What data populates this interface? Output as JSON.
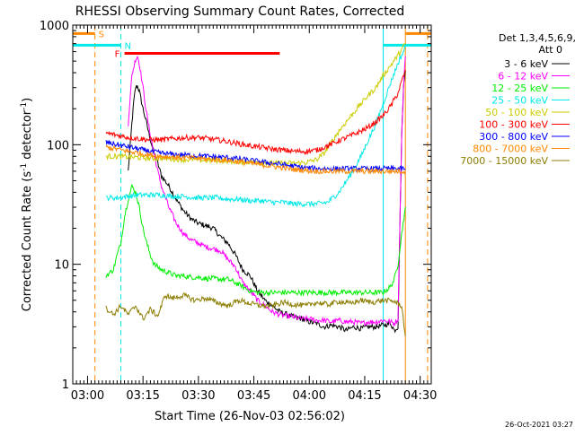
{
  "chart_data": {
    "type": "line",
    "title": "RHESSI Observing Summary Count Rates, Corrected",
    "xlabel": "Start Time (26-Nov-03 02:56:02)",
    "ylabel_main": "Corrected Count Rate (s",
    "ylabel_sup1": "-1",
    "ylabel_mid": " detector",
    "ylabel_sup2": "-1",
    "ylabel_end": ")",
    "footer": "26-Oct-2021 03:27",
    "x_unit": "minutes after 02:56:02",
    "xlim": [
      0,
      97
    ],
    "ylim": [
      1,
      1000
    ],
    "yscale": "log",
    "x_ticks": [
      {
        "value": 4,
        "label": "03:00"
      },
      {
        "value": 19,
        "label": "03:15"
      },
      {
        "value": 34,
        "label": "03:30"
      },
      {
        "value": 49,
        "label": "03:45"
      },
      {
        "value": 64,
        "label": "04:00"
      },
      {
        "value": 79,
        "label": "04:15"
      },
      {
        "value": 94,
        "label": "04:30"
      }
    ],
    "y_ticks": [
      {
        "value": 1,
        "label": "1"
      },
      {
        "value": 10,
        "label": "10"
      },
      {
        "value": 100,
        "label": "100"
      },
      {
        "value": 1000,
        "label": "1000"
      }
    ],
    "legend": {
      "header1": "Det 1,3,4,5,6,9,",
      "header2": "Att 0",
      "entries": [
        {
          "label": "3 - 6 keV",
          "color": "#000000"
        },
        {
          "label": "6 - 12 keV",
          "color": "#ff00ff"
        },
        {
          "label": "12 - 25 keV",
          "color": "#00ee00"
        },
        {
          "label": "25 - 50 keV",
          "color": "#00e8e8"
        },
        {
          "label": "50 - 100 keV",
          "color": "#cccc00"
        },
        {
          "label": "100 - 300 keV",
          "color": "#ff0000"
        },
        {
          "label": "300 - 800 keV",
          "color": "#0000ff"
        },
        {
          "label": "800 - 7000 keV",
          "color": "#ff8800"
        },
        {
          "label": "7000 - 15000 keV",
          "color": "#8b7d00"
        }
      ]
    },
    "flags": [
      {
        "label": "S",
        "color": "#ff8800",
        "x_start": 0,
        "x_end": 6,
        "x_start2": 90,
        "x_end2": 97,
        "value": 850
      },
      {
        "label": "N",
        "color": "#00e8e8",
        "x_start": 0,
        "x_end": 13,
        "x_start2": 84,
        "x_end2": 97,
        "value": 680
      },
      {
        "label": "F",
        "color": "#ff0000",
        "x_start": 14,
        "x_end": 56,
        "value": 580
      }
    ],
    "vlines": [
      {
        "x": 6,
        "color": "#ff8800",
        "style": "dashed"
      },
      {
        "x": 13,
        "color": "#00e8e8",
        "style": "dashed"
      },
      {
        "x": 84,
        "color": "#00e8e8",
        "style": "solid"
      },
      {
        "x": 90,
        "color": "#ff8800",
        "style": "solid"
      },
      {
        "x": 96,
        "color": "#ff8800",
        "style": "dashed"
      }
    ],
    "series": [
      {
        "name": "3 - 6 keV",
        "color": "#000000",
        "x": [
          9,
          12,
          14,
          15,
          16,
          16.5,
          17,
          17.5,
          18,
          19,
          20,
          21,
          22,
          23,
          24,
          26,
          28,
          30,
          32,
          34,
          36,
          38,
          40,
          42,
          44,
          46,
          48,
          50,
          52,
          54,
          56,
          58,
          60,
          62,
          64,
          66,
          68,
          70,
          72,
          74,
          76,
          78,
          80,
          82,
          84,
          86,
          87,
          88,
          89,
          89.5,
          90
        ],
        "y": [
          null,
          null,
          null,
          60,
          150,
          230,
          300,
          310,
          280,
          200,
          150,
          110,
          85,
          70,
          55,
          45,
          35,
          28,
          24,
          22,
          21,
          20,
          17,
          15,
          12,
          9,
          8,
          6,
          5,
          4.5,
          4,
          3.8,
          3.6,
          3.5,
          3.3,
          3.2,
          3.0,
          3.1,
          3.0,
          2.8,
          3.0,
          2.9,
          3.0,
          3.0,
          3.1,
          3.2,
          2.8,
          3.0,
          120,
          300,
          420
        ]
      },
      {
        "name": "6 - 12 keV",
        "color": "#ff00ff",
        "x": [
          9,
          12,
          14,
          15,
          16,
          17,
          17.5,
          18,
          19,
          20,
          21,
          22,
          23,
          24,
          26,
          28,
          30,
          32,
          34,
          36,
          38,
          40,
          42,
          44,
          46,
          48,
          50,
          52,
          54,
          56,
          58,
          60,
          62,
          64,
          66,
          68,
          70,
          72,
          74,
          76,
          78,
          80,
          82,
          84,
          86,
          87,
          88,
          89,
          89.5,
          90
        ],
        "y": [
          null,
          null,
          null,
          150,
          380,
          520,
          550,
          480,
          300,
          180,
          120,
          85,
          60,
          45,
          30,
          22,
          18,
          16,
          15,
          14,
          13.5,
          13,
          11,
          9.5,
          7,
          6,
          5,
          4.5,
          4.0,
          3.8,
          3.7,
          3.6,
          3.5,
          3.5,
          3.4,
          3.4,
          3.3,
          3.4,
          3.3,
          3.3,
          3.2,
          3.3,
          3.3,
          3.4,
          3.3,
          3.2,
          3.5,
          120,
          300,
          550
        ]
      },
      {
        "name": "12 - 25 keV",
        "color": "#00ee00",
        "x": [
          9,
          10,
          11,
          12,
          13,
          14,
          15,
          16,
          17,
          18,
          19,
          20,
          21,
          22,
          24,
          26,
          28,
          30,
          32,
          34,
          36,
          38,
          40,
          42,
          44,
          46,
          48,
          50,
          52,
          54,
          56,
          58,
          60,
          62,
          64,
          66,
          68,
          70,
          72,
          74,
          76,
          78,
          80,
          82,
          84,
          86,
          87,
          88,
          89,
          90
        ],
        "y": [
          8,
          8.5,
          9,
          12,
          15,
          25,
          35,
          45,
          40,
          30,
          20,
          15,
          12,
          10,
          9,
          8.5,
          8,
          8,
          7.8,
          7.8,
          7.6,
          7.6,
          7.5,
          7.5,
          7.0,
          6.5,
          6.0,
          5.8,
          5.8,
          5.8,
          5.8,
          5.8,
          5.8,
          5.8,
          5.8,
          5.8,
          5.8,
          5.8,
          5.8,
          5.8,
          5.8,
          5.8,
          5.8,
          5.8,
          5.8,
          6.5,
          7.5,
          10,
          18,
          30
        ]
      },
      {
        "name": "25 - 50 keV",
        "color": "#00e8e8",
        "x": [
          9,
          12,
          15,
          18,
          21,
          24,
          27,
          30,
          33,
          36,
          39,
          42,
          45,
          48,
          51,
          54,
          57,
          60,
          63,
          66,
          69,
          72,
          75,
          78,
          80,
          82,
          84,
          86,
          88,
          90
        ],
        "y": [
          36,
          36,
          37,
          38,
          38,
          38,
          37,
          37,
          36,
          36,
          36,
          35,
          35,
          34,
          34,
          33,
          33,
          32,
          32,
          32,
          33,
          40,
          55,
          80,
          110,
          150,
          220,
          330,
          480,
          650
        ]
      },
      {
        "name": "50 - 100 keV",
        "color": "#cccc00",
        "x": [
          9,
          12,
          15,
          18,
          21,
          24,
          27,
          30,
          33,
          36,
          39,
          42,
          45,
          48,
          51,
          54,
          57,
          60,
          63,
          66,
          68,
          70,
          72,
          75,
          78,
          80,
          82,
          84,
          86,
          88,
          90
        ],
        "y": [
          80,
          80,
          79,
          78,
          77,
          77,
          76,
          75,
          75,
          74,
          74,
          73,
          72,
          72,
          71,
          70,
          70,
          70,
          71,
          75,
          85,
          105,
          130,
          170,
          220,
          260,
          300,
          380,
          460,
          560,
          700
        ]
      },
      {
        "name": "100 - 300 keV",
        "color": "#ff0000",
        "x": [
          9,
          12,
          15,
          18,
          21,
          24,
          27,
          30,
          33,
          36,
          39,
          42,
          45,
          48,
          51,
          54,
          57,
          60,
          63,
          66,
          69,
          72,
          75,
          78,
          80,
          82,
          84,
          86,
          88,
          90
        ],
        "y": [
          125,
          120,
          115,
          112,
          110,
          110,
          112,
          114,
          115,
          113,
          110,
          106,
          102,
          98,
          95,
          92,
          90,
          88,
          88,
          90,
          98,
          108,
          118,
          130,
          140,
          155,
          175,
          210,
          270,
          420
        ]
      },
      {
        "name": "300 - 800 keV",
        "color": "#0000ff",
        "x": [
          9,
          12,
          15,
          18,
          21,
          24,
          27,
          30,
          33,
          36,
          39,
          42,
          45,
          48,
          51,
          54,
          57,
          60,
          63,
          66,
          69,
          72,
          75,
          78,
          81,
          84,
          87,
          90
        ],
        "y": [
          105,
          100,
          96,
          92,
          88,
          85,
          83,
          82,
          81,
          80,
          79,
          78,
          76,
          74,
          72,
          70,
          68,
          66,
          64,
          63,
          63,
          63,
          63,
          63,
          63,
          63,
          63,
          63
        ]
      },
      {
        "name": "800 - 7000 keV",
        "color": "#ff8800",
        "x": [
          9,
          12,
          15,
          18,
          21,
          24,
          27,
          30,
          33,
          36,
          39,
          42,
          45,
          48,
          51,
          54,
          57,
          60,
          63,
          66,
          69,
          72,
          75,
          78,
          81,
          84,
          87,
          90
        ],
        "y": [
          95,
          92,
          88,
          85,
          82,
          80,
          79,
          78,
          77,
          76,
          75,
          74,
          72,
          70,
          68,
          66,
          64,
          62,
          61,
          60,
          60,
          60,
          60,
          60,
          60,
          60,
          60,
          60
        ]
      },
      {
        "name": "7000 - 15000 keV",
        "color": "#8b7d00",
        "x": [
          9,
          11,
          13,
          15,
          17,
          19,
          21,
          23,
          24,
          25,
          27,
          30,
          33,
          36,
          39,
          42,
          45,
          48,
          51,
          54,
          57,
          60,
          63,
          66,
          69,
          72,
          75,
          78,
          81,
          84,
          87,
          89,
          90
        ],
        "y": [
          4.3,
          3.8,
          4.5,
          3.8,
          4.5,
          3.5,
          4.2,
          3.7,
          4.5,
          5.5,
          5.2,
          5.5,
          5.0,
          5.2,
          4.8,
          4.5,
          5.0,
          4.7,
          4.5,
          4.5,
          4.8,
          4.6,
          4.5,
          4.8,
          4.6,
          4.9,
          4.7,
          5.0,
          4.8,
          5.0,
          4.9,
          4.5,
          2.5
        ]
      }
    ]
  }
}
